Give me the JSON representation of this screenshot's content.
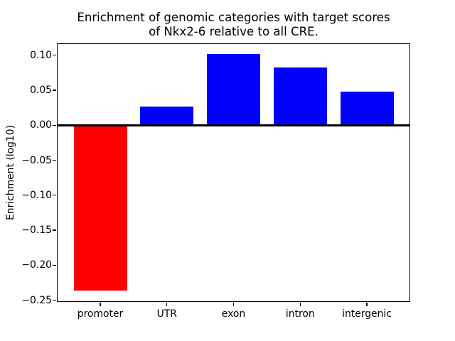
{
  "figure": {
    "title_line1": "Enrichment of genomic categories with target scores",
    "title_line2": "of Nkx2-6 relative to all CRE.",
    "ylabel": "Enrichment (log10)"
  },
  "chart_data": {
    "type": "bar",
    "title": "Enrichment of genomic categories with target scores\nof Nkx2-6 relative to all CRE.",
    "xlabel": "",
    "ylabel": "Enrichment (log10)",
    "categories": [
      "promoter",
      "UTR",
      "exon",
      "intron",
      "intergenic"
    ],
    "values": [
      -0.236,
      0.027,
      0.102,
      0.083,
      0.048
    ],
    "bar_colors": [
      "#ff0000",
      "#0000ff",
      "#0000ff",
      "#0000ff",
      "#0000ff"
    ],
    "positive_color": "#0000ff",
    "negative_color": "#ff0000",
    "axis_color": "#000000",
    "background": "#ffffff",
    "bar_width": 0.8,
    "xlim": [
      -0.64,
      4.64
    ],
    "ylim": [
      -0.2515,
      0.116
    ],
    "yticks": [
      0.1,
      0.05,
      0.0,
      -0.05,
      -0.1,
      -0.15,
      -0.2,
      -0.25
    ],
    "ytick_labels": [
      "0.10",
      "0.05",
      "0.00",
      "−0.05",
      "−0.10",
      "−0.15",
      "−0.20",
      "−0.25"
    ],
    "zero_line": true,
    "grid": false,
    "legend": null
  }
}
